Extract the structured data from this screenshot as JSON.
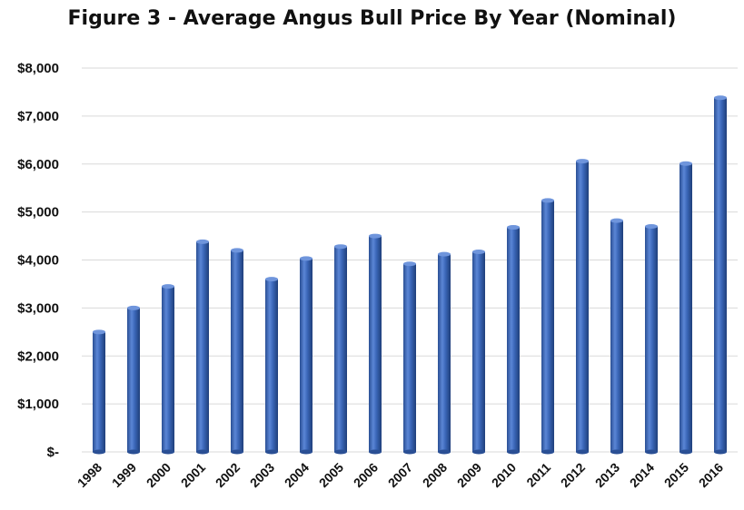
{
  "chart_data": {
    "type": "bar",
    "title": "Figure 3 - Average Angus Bull Price By Year (Nominal)",
    "xlabel": "",
    "ylabel": "",
    "categories": [
      "1998",
      "1999",
      "2000",
      "2001",
      "2002",
      "2003",
      "2004",
      "2005",
      "2006",
      "2007",
      "2008",
      "2009",
      "2010",
      "2011",
      "2012",
      "2013",
      "2014",
      "2015",
      "2016"
    ],
    "values": [
      2500,
      3000,
      3450,
      4380,
      4200,
      3600,
      4030,
      4280,
      4500,
      3920,
      4120,
      4170,
      4680,
      5240,
      6060,
      4820,
      4700,
      6010,
      7380
    ],
    "ylim": [
      0,
      8000
    ],
    "yticks": [
      0,
      1000,
      2000,
      3000,
      4000,
      5000,
      6000,
      7000,
      8000
    ],
    "ytick_labels": [
      "$-",
      "$1,000",
      "$2,000",
      "$3,000",
      "$4,000",
      "$5,000",
      "$6,000",
      "$7,000",
      "$8,000"
    ],
    "grid": true,
    "legend": "none",
    "bar_color": "#3a66b7"
  }
}
